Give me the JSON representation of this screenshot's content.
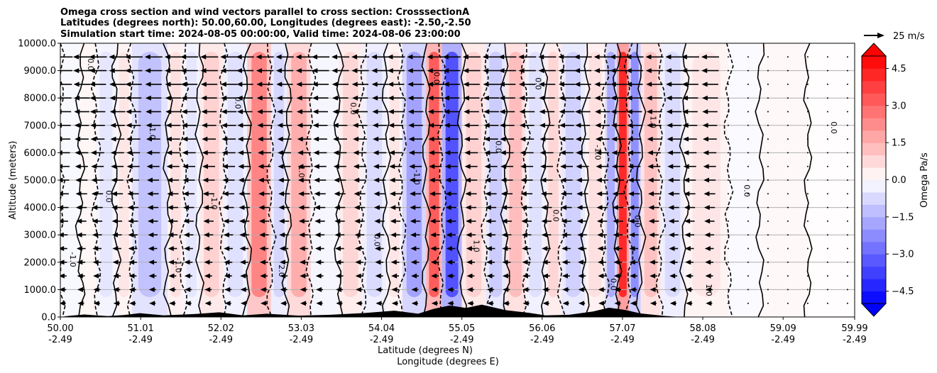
{
  "chart_data": {
    "type": "heatmap",
    "subtype": "vertical cross-section with contours and wind vectors",
    "title_lines": [
      "Omega cross section and wind vectors parallel to cross section: CrosssectionA",
      "Latitudes (degrees north): 50.00,60.00, Longitudes (degrees east): -2.50,-2.50",
      "Simulation start time: 2024-08-05 00:00:00, Valid time: 2024-08-06 23:00:00"
    ],
    "ylabel": "Altitude (meters)",
    "xlabel_lat": "Latitude (degrees N)",
    "xlabel_lon": "Longitude (degrees E)",
    "xlim": [
      50.0,
      59.99
    ],
    "ylim": [
      0,
      10000
    ],
    "x_ticks": [
      {
        "lat": "50.00",
        "lon": "-2.49",
        "v": 50.0
      },
      {
        "lat": "51.01",
        "lon": "-2.49",
        "v": 51.01
      },
      {
        "lat": "52.02",
        "lon": "-2.49",
        "v": 52.02
      },
      {
        "lat": "53.03",
        "lon": "-2.49",
        "v": 53.03
      },
      {
        "lat": "54.04",
        "lon": "-2.49",
        "v": 54.04
      },
      {
        "lat": "55.05",
        "lon": "-2.49",
        "v": 55.05
      },
      {
        "lat": "56.06",
        "lon": "-2.49",
        "v": 56.06
      },
      {
        "lat": "57.07",
        "lon": "-2.49",
        "v": 57.07
      },
      {
        "lat": "58.08",
        "lon": "-2.49",
        "v": 58.08
      },
      {
        "lat": "59.09",
        "lon": "-2.49",
        "v": 59.09
      },
      {
        "lat": "59.99",
        "lon": "-2.49",
        "v": 59.99
      }
    ],
    "y_ticks": [
      {
        "label": "0.0",
        "v": 0
      },
      {
        "label": "1000.0",
        "v": 1000
      },
      {
        "label": "2000.0",
        "v": 2000
      },
      {
        "label": "3000.0",
        "v": 3000
      },
      {
        "label": "4000.0",
        "v": 4000
      },
      {
        "label": "5000.0",
        "v": 5000
      },
      {
        "label": "6000.0",
        "v": 6000
      },
      {
        "label": "7000.0",
        "v": 7000
      },
      {
        "label": "8000.0",
        "v": 8000
      },
      {
        "label": "9000.0",
        "v": 9000
      },
      {
        "label": "10000.0",
        "v": 10000
      }
    ],
    "grid": "horizontal",
    "colorbar": {
      "label": "Omega Pa/s",
      "range": [
        -5.0,
        5.0
      ],
      "ticks": [
        {
          "label": "4.5",
          "v": 4.5
        },
        {
          "label": "3.0",
          "v": 3.0
        },
        {
          "label": "1.5",
          "v": 1.5
        },
        {
          "label": "0.0",
          "v": 0.0
        },
        {
          "label": "−1.5",
          "v": -1.5
        },
        {
          "label": "−3.0",
          "v": -3.0
        },
        {
          "label": "−4.5",
          "v": -4.5
        }
      ],
      "extend": "both"
    },
    "quiver_key": {
      "label": "25 m/s",
      "speed": 25
    },
    "omega_bands": [
      {
        "x0": 50.0,
        "x1": 50.25,
        "value": -0.3
      },
      {
        "x0": 50.25,
        "x1": 50.45,
        "value": 0.4
      },
      {
        "x0": 50.45,
        "x1": 50.7,
        "value": -0.5
      },
      {
        "x0": 50.7,
        "x1": 50.9,
        "value": 0.5
      },
      {
        "x0": 50.9,
        "x1": 51.35,
        "value": -1.2
      },
      {
        "x0": 51.35,
        "x1": 51.55,
        "value": 0.6
      },
      {
        "x0": 51.55,
        "x1": 51.75,
        "value": -0.5
      },
      {
        "x0": 51.75,
        "x1": 52.05,
        "value": 0.9
      },
      {
        "x0": 52.05,
        "x1": 52.35,
        "value": -0.6
      },
      {
        "x0": 52.35,
        "x1": 52.65,
        "value": 2.4
      },
      {
        "x0": 52.65,
        "x1": 52.85,
        "value": -0.8
      },
      {
        "x0": 52.85,
        "x1": 53.15,
        "value": 1.6
      },
      {
        "x0": 53.15,
        "x1": 53.5,
        "value": -0.4
      },
      {
        "x0": 53.5,
        "x1": 53.8,
        "value": 0.8
      },
      {
        "x0": 53.8,
        "x1": 54.1,
        "value": -0.7
      },
      {
        "x0": 54.1,
        "x1": 54.3,
        "value": 0.5
      },
      {
        "x0": 54.3,
        "x1": 54.6,
        "value": -1.8
      },
      {
        "x0": 54.6,
        "x1": 54.8,
        "value": 3.2
      },
      {
        "x0": 54.8,
        "x1": 55.05,
        "value": -3.4
      },
      {
        "x0": 55.05,
        "x1": 55.35,
        "value": 0.9
      },
      {
        "x0": 55.35,
        "x1": 55.6,
        "value": -1.0
      },
      {
        "x0": 55.6,
        "x1": 55.85,
        "value": 1.3
      },
      {
        "x0": 55.85,
        "x1": 56.1,
        "value": -0.6
      },
      {
        "x0": 56.1,
        "x1": 56.3,
        "value": 0.8
      },
      {
        "x0": 56.3,
        "x1": 56.6,
        "value": -0.9
      },
      {
        "x0": 56.6,
        "x1": 56.85,
        "value": 0.6
      },
      {
        "x0": 56.85,
        "x1": 57.0,
        "value": -1.6
      },
      {
        "x0": 57.0,
        "x1": 57.15,
        "value": 4.2
      },
      {
        "x0": 57.15,
        "x1": 57.3,
        "value": -2.2
      },
      {
        "x0": 57.3,
        "x1": 57.55,
        "value": 1.2
      },
      {
        "x0": 57.55,
        "x1": 57.85,
        "value": -0.7
      },
      {
        "x0": 57.85,
        "x1": 58.4,
        "value": 0.5
      },
      {
        "x0": 58.4,
        "x1": 58.8,
        "value": -0.2
      },
      {
        "x0": 58.8,
        "x1": 59.4,
        "value": 0.3
      },
      {
        "x0": 59.4,
        "x1": 59.99,
        "value": 0.1
      }
    ],
    "contour_labels": [
      "0.0",
      "1.0",
      "-1.0",
      "2.0",
      "0.0",
      "-1.0",
      "1.0",
      "0.0",
      "-1.0",
      "0.0",
      "1.0",
      "0.0",
      "0.0",
      "-1.0",
      "0.0",
      "1.0",
      "0.0",
      "0.0",
      "0.0",
      "0.0",
      "0.0",
      "1.0",
      "0.0",
      "-1.0"
    ],
    "vector_columns": [
      50.02,
      50.25,
      50.45,
      50.7,
      50.9,
      51.15,
      51.4,
      51.6,
      51.85,
      52.1,
      52.3,
      52.55,
      52.8,
      53.05,
      53.25,
      53.5,
      53.75,
      54.0,
      54.2,
      54.45,
      54.7,
      54.9,
      55.15,
      55.4,
      55.6,
      55.85,
      56.1,
      56.35,
      56.55,
      56.8,
      57.0,
      57.2,
      57.45,
      57.7,
      57.9,
      58.15,
      58.4,
      58.65,
      58.9,
      59.15,
      59.4,
      59.65,
      59.9
    ],
    "vector_levels": [
      500,
      1000,
      1500,
      2000,
      2500,
      3000,
      3500,
      4000,
      4500,
      5000,
      5500,
      6000,
      6500,
      7000,
      7500,
      8000,
      8500,
      9000,
      9500
    ],
    "terrain": [
      {
        "x": 50.0,
        "h": 0
      },
      {
        "x": 50.1,
        "h": 40
      },
      {
        "x": 50.3,
        "h": 90
      },
      {
        "x": 50.6,
        "h": 30
      },
      {
        "x": 50.8,
        "h": 70
      },
      {
        "x": 51.0,
        "h": 140
      },
      {
        "x": 51.3,
        "h": 60
      },
      {
        "x": 51.7,
        "h": 110
      },
      {
        "x": 52.0,
        "h": 170
      },
      {
        "x": 52.3,
        "h": 60
      },
      {
        "x": 52.6,
        "h": 120
      },
      {
        "x": 53.0,
        "h": 50
      },
      {
        "x": 53.4,
        "h": 80
      },
      {
        "x": 53.8,
        "h": 140
      },
      {
        "x": 54.2,
        "h": 230
      },
      {
        "x": 54.5,
        "h": 120
      },
      {
        "x": 54.7,
        "h": 300
      },
      {
        "x": 54.9,
        "h": 420
      },
      {
        "x": 55.1,
        "h": 330
      },
      {
        "x": 55.3,
        "h": 450
      },
      {
        "x": 55.6,
        "h": 250
      },
      {
        "x": 55.9,
        "h": 150
      },
      {
        "x": 56.1,
        "h": 60
      },
      {
        "x": 56.4,
        "h": 80
      },
      {
        "x": 56.7,
        "h": 200
      },
      {
        "x": 56.9,
        "h": 340
      },
      {
        "x": 57.1,
        "h": 260
      },
      {
        "x": 57.3,
        "h": 130
      },
      {
        "x": 57.6,
        "h": 40
      },
      {
        "x": 57.8,
        "h": 0
      },
      {
        "x": 59.99,
        "h": 0
      }
    ]
  }
}
